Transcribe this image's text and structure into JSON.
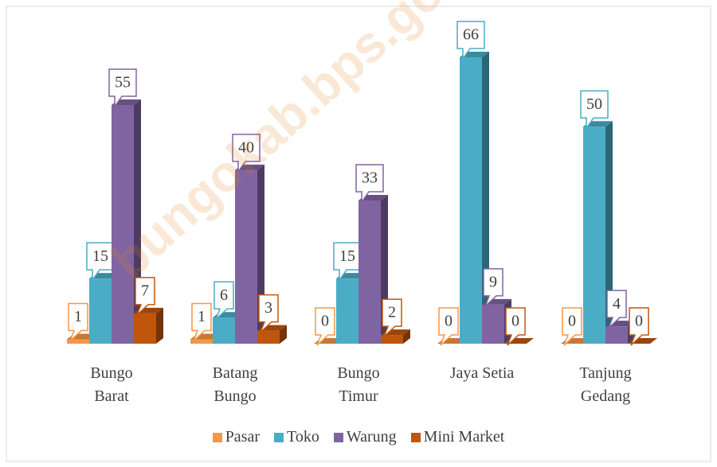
{
  "chart_data": {
    "type": "bar3d",
    "categories": [
      "Bungo Barat",
      "Batang Bungo",
      "Bungo Timur",
      "Jaya Setia",
      "Tanjung Gedang"
    ],
    "series": [
      {
        "name": "Pasar",
        "color": "#f79646",
        "values": [
          1,
          1,
          0,
          0,
          0
        ]
      },
      {
        "name": "Toko",
        "color": "#4bacc6",
        "values": [
          15,
          6,
          15,
          66,
          50
        ]
      },
      {
        "name": "Warung",
        "color": "#8064a2",
        "values": [
          55,
          40,
          33,
          9,
          4
        ]
      },
      {
        "name": "Mini Market",
        "color": "#c0560c",
        "values": [
          7,
          3,
          2,
          0,
          0
        ]
      }
    ],
    "legend": "bottom",
    "watermark": "bungokab.bps.go.id"
  }
}
